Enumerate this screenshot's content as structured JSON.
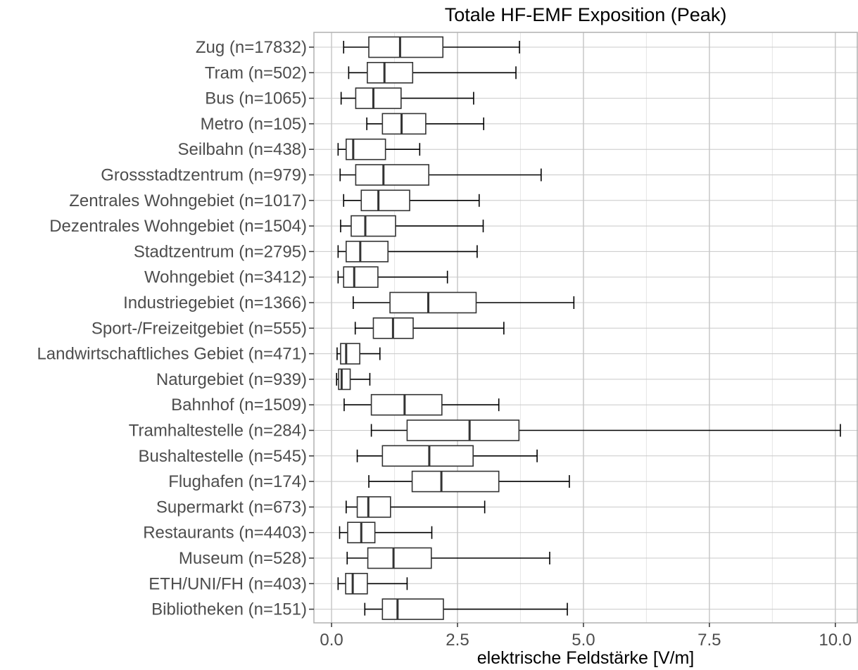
{
  "chart_data": {
    "type": "boxplot",
    "orientation": "horizontal",
    "title": "Totale HF-EMF Exposition (Peak)",
    "xlabel": "elektrische Feldstärke [V/m]",
    "ylabel": "",
    "xlim": [
      -0.35,
      10.45
    ],
    "x_ticks": [
      0.0,
      2.5,
      5.0,
      7.5,
      10.0
    ],
    "x_tick_labels": [
      "0.0",
      "2.5",
      "5.0",
      "7.5",
      "10.0"
    ],
    "grid": true,
    "legend": "none",
    "colors": {
      "box_stroke": "#333333",
      "whisker": "#000000",
      "grid_major": "#c8c8c8",
      "grid_minor": "#e6e6e6",
      "panel_border": "#b0b0b0"
    },
    "categories": [
      "Zug (n=17832)",
      "Tram (n=502)",
      "Bus (n=1065)",
      "Metro (n=105)",
      "Seilbahn (n=438)",
      "Grossstadtzentrum (n=979)",
      "Zentrales Wohngebiet (n=1017)",
      "Dezentrales Wohngebiet (n=1504)",
      "Stadtzentrum (n=2795)",
      "Wohngebiet (n=3412)",
      "Industriegebiet (n=1366)",
      "Sport-/Freizeitgebiet (n=555)",
      "Landwirtschaftliches Gebiet (n=471)",
      "Naturgebiet (n=939)",
      "Bahnhof (n=1509)",
      "Tramhaltestelle (n=284)",
      "Bushaltestelle (n=545)",
      "Flughafen (n=174)",
      "Supermarkt (n=673)",
      "Restaurants (n=4403)",
      "Museum (n=528)",
      "ETH/UNI/FH (n=403)",
      "Bibliotheken (n=151)"
    ],
    "boxes": [
      {
        "low": 0.24,
        "q1": 0.74,
        "median": 1.36,
        "q3": 2.21,
        "high": 3.73
      },
      {
        "low": 0.34,
        "q1": 0.71,
        "median": 1.05,
        "q3": 1.61,
        "high": 3.66
      },
      {
        "low": 0.19,
        "q1": 0.48,
        "median": 0.83,
        "q3": 1.38,
        "high": 2.82
      },
      {
        "low": 0.7,
        "q1": 1.01,
        "median": 1.39,
        "q3": 1.87,
        "high": 3.02
      },
      {
        "low": 0.13,
        "q1": 0.29,
        "median": 0.43,
        "q3": 1.07,
        "high": 1.75
      },
      {
        "low": 0.17,
        "q1": 0.48,
        "median": 1.03,
        "q3": 1.93,
        "high": 4.16
      },
      {
        "low": 0.24,
        "q1": 0.59,
        "median": 0.93,
        "q3": 1.55,
        "high": 2.93
      },
      {
        "low": 0.18,
        "q1": 0.39,
        "median": 0.67,
        "q3": 1.27,
        "high": 3.01
      },
      {
        "low": 0.13,
        "q1": 0.29,
        "median": 0.57,
        "q3": 1.12,
        "high": 2.89
      },
      {
        "low": 0.13,
        "q1": 0.24,
        "median": 0.45,
        "q3": 0.92,
        "high": 2.3
      },
      {
        "low": 0.43,
        "q1": 1.16,
        "median": 1.92,
        "q3": 2.87,
        "high": 4.81
      },
      {
        "low": 0.47,
        "q1": 0.83,
        "median": 1.22,
        "q3": 1.62,
        "high": 3.42
      },
      {
        "low": 0.11,
        "q1": 0.18,
        "median": 0.29,
        "q3": 0.56,
        "high": 0.96
      },
      {
        "low": 0.1,
        "q1": 0.14,
        "median": 0.2,
        "q3": 0.37,
        "high": 0.76
      },
      {
        "low": 0.25,
        "q1": 0.79,
        "median": 1.45,
        "q3": 2.19,
        "high": 3.32
      },
      {
        "low": 0.79,
        "q1": 1.5,
        "median": 2.74,
        "q3": 3.72,
        "high": 10.1
      },
      {
        "low": 0.51,
        "q1": 1.01,
        "median": 1.94,
        "q3": 2.81,
        "high": 4.08
      },
      {
        "low": 0.74,
        "q1": 1.6,
        "median": 2.18,
        "q3": 3.32,
        "high": 4.72
      },
      {
        "low": 0.29,
        "q1": 0.51,
        "median": 0.73,
        "q3": 1.17,
        "high": 3.04
      },
      {
        "low": 0.16,
        "q1": 0.32,
        "median": 0.59,
        "q3": 0.86,
        "high": 1.99
      },
      {
        "low": 0.31,
        "q1": 0.72,
        "median": 1.23,
        "q3": 1.98,
        "high": 4.33
      },
      {
        "low": 0.13,
        "q1": 0.28,
        "median": 0.42,
        "q3": 0.71,
        "high": 1.5
      },
      {
        "low": 0.66,
        "q1": 1.01,
        "median": 1.31,
        "q3": 2.22,
        "high": 4.68
      }
    ]
  }
}
